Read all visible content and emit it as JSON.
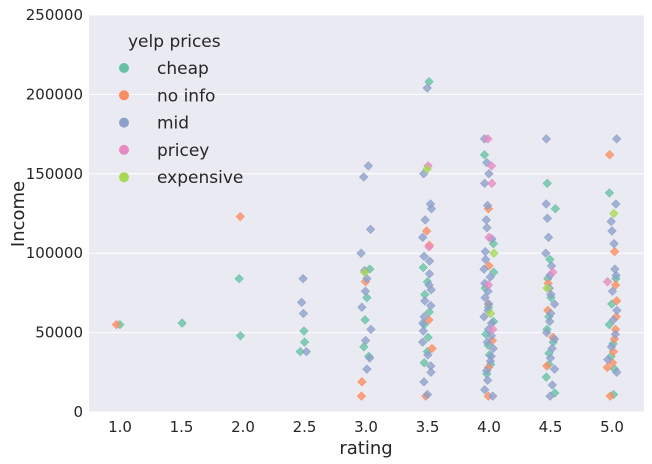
{
  "chart_data": {
    "type": "scatter",
    "title": "",
    "xlabel": "rating",
    "ylabel": "Income",
    "categories": [
      "1.0",
      "1.5",
      "2.0",
      "2.5",
      "3.0",
      "3.5",
      "4.0",
      "4.5",
      "5.0"
    ],
    "ylim": [
      0,
      250000
    ],
    "yticks": [
      "0",
      "50000",
      "100000",
      "150000",
      "200000",
      "250000"
    ],
    "grid": true,
    "legend": {
      "title": "yelp prices",
      "placement": "top-left",
      "entries": [
        {
          "name": "cheap",
          "color": "#66c2a5"
        },
        {
          "name": "no info",
          "color": "#fc8d62"
        },
        {
          "name": "mid",
          "color": "#8da0cb"
        },
        {
          "name": "pricey",
          "color": "#e78ac3"
        },
        {
          "name": "expensive",
          "color": "#a6d854"
        }
      ]
    },
    "series": [
      {
        "name": "cheap",
        "points": [
          [
            "1.0",
            55000
          ],
          [
            "1.5",
            56000
          ],
          [
            "2.0",
            84000
          ],
          [
            "2.0",
            48000
          ],
          [
            "2.5",
            51000
          ],
          [
            "2.5",
            44000
          ],
          [
            "2.5",
            38000
          ],
          [
            "3.0",
            90000
          ],
          [
            "3.0",
            72000
          ],
          [
            "3.0",
            58000
          ],
          [
            "3.0",
            41000
          ],
          [
            "3.0",
            35000
          ],
          [
            "3.5",
            208000
          ],
          [
            "3.5",
            91000
          ],
          [
            "3.5",
            82000
          ],
          [
            "3.5",
            74000
          ],
          [
            "3.5",
            63000
          ],
          [
            "3.5",
            55000
          ],
          [
            "3.5",
            47000
          ],
          [
            "3.5",
            38000
          ],
          [
            "3.5",
            31000
          ],
          [
            "4.0",
            162000
          ],
          [
            "4.0",
            106000
          ],
          [
            "4.0",
            88000
          ],
          [
            "4.0",
            78000
          ],
          [
            "4.0",
            66000
          ],
          [
            "4.0",
            57000
          ],
          [
            "4.0",
            49000
          ],
          [
            "4.0",
            42000
          ],
          [
            "4.0",
            36000
          ],
          [
            "4.0",
            30000
          ],
          [
            "4.0",
            24000
          ],
          [
            "4.5",
            144000
          ],
          [
            "4.5",
            128000
          ],
          [
            "4.5",
            96000
          ],
          [
            "4.5",
            84000
          ],
          [
            "4.5",
            72000
          ],
          [
            "4.5",
            60000
          ],
          [
            "4.5",
            52000
          ],
          [
            "4.5",
            44000
          ],
          [
            "4.5",
            37000
          ],
          [
            "4.5",
            30000
          ],
          [
            "4.5",
            22000
          ],
          [
            "4.5",
            12000
          ],
          [
            "5.0",
            138000
          ],
          [
            "5.0",
            84000
          ],
          [
            "5.0",
            68000
          ],
          [
            "5.0",
            55000
          ],
          [
            "5.0",
            43000
          ],
          [
            "5.0",
            35000
          ],
          [
            "5.0",
            27000
          ],
          [
            "5.0",
            11000
          ]
        ]
      },
      {
        "name": "no info",
        "points": [
          [
            "1.0",
            55000
          ],
          [
            "2.0",
            123000
          ],
          [
            "3.0",
            82000
          ],
          [
            "3.0",
            19000
          ],
          [
            "3.0",
            10000
          ],
          [
            "3.5",
            114000
          ],
          [
            "3.5",
            105000
          ],
          [
            "3.5",
            58000
          ],
          [
            "3.5",
            40000
          ],
          [
            "3.5",
            10000
          ],
          [
            "4.0",
            128000
          ],
          [
            "4.0",
            92000
          ],
          [
            "4.0",
            68000
          ],
          [
            "4.0",
            45000
          ],
          [
            "4.0",
            28000
          ],
          [
            "4.0",
            10000
          ],
          [
            "4.5",
            81000
          ],
          [
            "4.5",
            64000
          ],
          [
            "4.5",
            47000
          ],
          [
            "4.5",
            29000
          ],
          [
            "5.0",
            162000
          ],
          [
            "5.0",
            101000
          ],
          [
            "5.0",
            80000
          ],
          [
            "5.0",
            70000
          ],
          [
            "5.0",
            60000
          ],
          [
            "5.0",
            52000
          ],
          [
            "5.0",
            46000
          ],
          [
            "5.0",
            38000
          ],
          [
            "5.0",
            31000
          ],
          [
            "5.0",
            28000
          ],
          [
            "5.0",
            10000
          ]
        ]
      },
      {
        "name": "mid",
        "points": [
          [
            "2.5",
            84000
          ],
          [
            "2.5",
            69000
          ],
          [
            "2.5",
            62000
          ],
          [
            "2.5",
            38000
          ],
          [
            "3.0",
            155000
          ],
          [
            "3.0",
            148000
          ],
          [
            "3.0",
            115000
          ],
          [
            "3.0",
            100000
          ],
          [
            "3.0",
            89000
          ],
          [
            "3.0",
            84000
          ],
          [
            "3.0",
            76000
          ],
          [
            "3.0",
            66000
          ],
          [
            "3.0",
            52000
          ],
          [
            "3.0",
            45000
          ],
          [
            "3.0",
            34000
          ],
          [
            "3.0",
            27000
          ],
          [
            "3.5",
            204000
          ],
          [
            "3.5",
            150000
          ],
          [
            "3.5",
            131000
          ],
          [
            "3.5",
            128000
          ],
          [
            "3.5",
            121000
          ],
          [
            "3.5",
            110000
          ],
          [
            "3.5",
            98000
          ],
          [
            "3.5",
            95000
          ],
          [
            "3.5",
            87000
          ],
          [
            "3.5",
            80000
          ],
          [
            "3.5",
            77000
          ],
          [
            "3.5",
            70000
          ],
          [
            "3.5",
            67000
          ],
          [
            "3.5",
            60000
          ],
          [
            "3.5",
            56000
          ],
          [
            "3.5",
            51000
          ],
          [
            "3.5",
            44000
          ],
          [
            "3.5",
            36000
          ],
          [
            "3.5",
            29000
          ],
          [
            "3.5",
            25000
          ],
          [
            "3.5",
            19000
          ],
          [
            "3.5",
            11000
          ],
          [
            "4.0",
            172000
          ],
          [
            "4.0",
            157000
          ],
          [
            "4.0",
            150000
          ],
          [
            "4.0",
            144000
          ],
          [
            "4.0",
            130000
          ],
          [
            "4.0",
            121000
          ],
          [
            "4.0",
            116000
          ],
          [
            "4.0",
            109000
          ],
          [
            "4.0",
            101000
          ],
          [
            "4.0",
            96000
          ],
          [
            "4.0",
            90000
          ],
          [
            "4.0",
            85000
          ],
          [
            "4.0",
            81000
          ],
          [
            "4.0",
            76000
          ],
          [
            "4.0",
            72000
          ],
          [
            "4.0",
            68000
          ],
          [
            "4.0",
            64000
          ],
          [
            "4.0",
            60000
          ],
          [
            "4.0",
            56000
          ],
          [
            "4.0",
            52000
          ],
          [
            "4.0",
            48000
          ],
          [
            "4.0",
            44000
          ],
          [
            "4.0",
            40000
          ],
          [
            "4.0",
            35000
          ],
          [
            "4.0",
            32000
          ],
          [
            "4.0",
            26000
          ],
          [
            "4.0",
            20000
          ],
          [
            "4.0",
            14000
          ],
          [
            "4.0",
            10000
          ],
          [
            "4.5",
            172000
          ],
          [
            "4.5",
            131000
          ],
          [
            "4.5",
            122000
          ],
          [
            "4.5",
            110000
          ],
          [
            "4.5",
            100000
          ],
          [
            "4.5",
            92000
          ],
          [
            "4.5",
            86000
          ],
          [
            "4.5",
            78000
          ],
          [
            "4.5",
            74000
          ],
          [
            "4.5",
            68000
          ],
          [
            "4.5",
            62000
          ],
          [
            "4.5",
            57000
          ],
          [
            "4.5",
            50000
          ],
          [
            "4.5",
            46000
          ],
          [
            "4.5",
            40000
          ],
          [
            "4.5",
            34000
          ],
          [
            "4.5",
            27000
          ],
          [
            "4.5",
            17000
          ],
          [
            "4.5",
            10000
          ],
          [
            "5.0",
            172000
          ],
          [
            "5.0",
            131000
          ],
          [
            "5.0",
            120000
          ],
          [
            "5.0",
            114000
          ],
          [
            "5.0",
            106000
          ],
          [
            "5.0",
            90000
          ],
          [
            "5.0",
            86000
          ],
          [
            "5.0",
            76000
          ],
          [
            "5.0",
            64000
          ],
          [
            "5.0",
            58000
          ],
          [
            "5.0",
            49000
          ],
          [
            "5.0",
            41000
          ],
          [
            "5.0",
            33000
          ],
          [
            "5.0",
            25000
          ]
        ]
      },
      {
        "name": "pricey",
        "points": [
          [
            "3.5",
            155000
          ],
          [
            "3.5",
            104000
          ],
          [
            "4.0",
            172000
          ],
          [
            "4.0",
            155000
          ],
          [
            "4.0",
            144000
          ],
          [
            "4.0",
            110000
          ],
          [
            "4.0",
            80000
          ],
          [
            "4.0",
            52000
          ],
          [
            "4.5",
            88000
          ],
          [
            "5.0",
            82000
          ]
        ]
      },
      {
        "name": "expensive",
        "points": [
          [
            "3.0",
            88000
          ],
          [
            "3.5",
            153000
          ],
          [
            "4.0",
            100000
          ],
          [
            "4.0",
            62000
          ],
          [
            "4.5",
            78000
          ],
          [
            "5.0",
            125000
          ]
        ]
      }
    ]
  }
}
